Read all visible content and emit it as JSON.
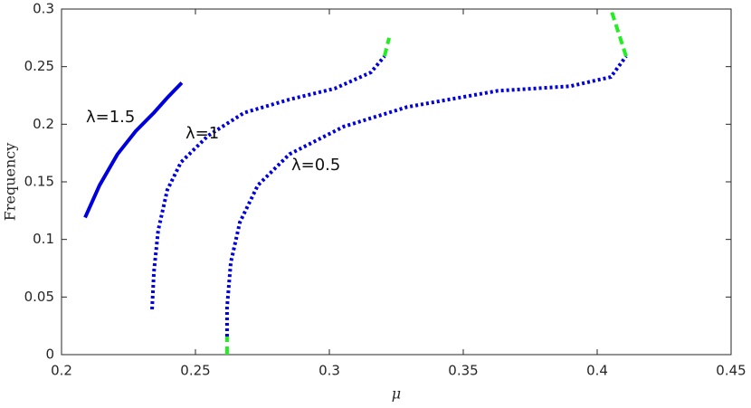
{
  "chart_data": {
    "type": "line",
    "x_label": "μ",
    "y_label": "Frequency",
    "xlim": [
      0.2,
      0.45
    ],
    "xticks": [
      0.2,
      0.25,
      0.3,
      0.35,
      0.4,
      0.45
    ],
    "ylim": [
      0,
      0.3
    ],
    "yticks": [
      0,
      0.05,
      0.1,
      0.15,
      0.2,
      0.25,
      0.3
    ],
    "grid": false,
    "annotations": [
      "λ=1.5",
      "λ=1",
      "λ=0.5"
    ],
    "series": [
      {
        "color": "#0000dd",
        "style": "solid",
        "x": [
          0.2088,
          0.2142,
          0.2209,
          0.2277,
          0.2345,
          0.2395,
          0.2449
        ],
        "values": [
          0.119,
          0.147,
          0.174,
          0.194,
          0.21,
          0.223,
          0.236
        ]
      },
      {
        "color": "#0000dd",
        "style": "dotted",
        "x": [
          0.2338,
          0.2345,
          0.2361,
          0.2395,
          0.2446,
          0.2547,
          0.2682,
          0.2851,
          0.302,
          0.3155,
          0.3206
        ],
        "values": [
          0.0393,
          0.072,
          0.108,
          0.143,
          0.167,
          0.19,
          0.21,
          0.2215,
          0.231,
          0.245,
          0.259
        ]
      },
      {
        "color": "#22ee22",
        "style": "dashed",
        "x": [
          0.3206,
          0.3223
        ],
        "values": [
          0.259,
          0.275
        ]
      },
      {
        "color": "#0000dd",
        "style": "dotted",
        "x": [
          0.2618,
          0.2618,
          0.2632,
          0.2666,
          0.2733,
          0.2851,
          0.3054,
          0.3291,
          0.3628,
          0.3899,
          0.4051,
          0.4108
        ],
        "values": [
          0.0157,
          0.041,
          0.08,
          0.115,
          0.147,
          0.174,
          0.198,
          0.215,
          0.229,
          0.233,
          0.241,
          0.259
        ]
      },
      {
        "color": "#22ee22",
        "style": "dashed",
        "x": [
          0.2618,
          0.2618
        ],
        "values": [
          0,
          0.0157
        ]
      },
      {
        "color": "#22ee22",
        "style": "dashed",
        "x": [
          0.4108,
          0.4051
        ],
        "values": [
          0.259,
          0.3
        ]
      }
    ]
  }
}
